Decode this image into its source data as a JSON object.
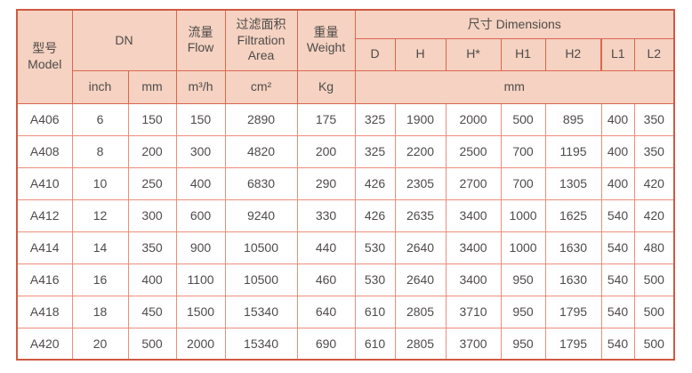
{
  "table": {
    "header": {
      "model": "型号\nModel",
      "dn": "DN",
      "flow": "流量\nFlow",
      "filtration_area": "过滤面积\nFiltration\nArea",
      "weight": "重量\nWeight",
      "dimensions": "尺寸 Dimensions",
      "dn_units": [
        "inch",
        "mm"
      ],
      "flow_unit": "m³/h",
      "area_unit": "cm²",
      "weight_unit": "Kg",
      "dim_cols": [
        "D",
        "H",
        "H*",
        "H1",
        "H2",
        "L1",
        "L2"
      ],
      "dim_unit": "mm"
    },
    "rows": [
      {
        "model": "A406",
        "values": [
          "6",
          "150",
          "150",
          "2890",
          "175",
          "325",
          "1900",
          "2000",
          "500",
          "895",
          "400",
          "350"
        ]
      },
      {
        "model": "A408",
        "values": [
          "8",
          "200",
          "300",
          "4820",
          "200",
          "325",
          "2200",
          "2500",
          "700",
          "1195",
          "400",
          "350"
        ]
      },
      {
        "model": "A410",
        "values": [
          "10",
          "250",
          "400",
          "6830",
          "290",
          "426",
          "2305",
          "2700",
          "700",
          "1305",
          "400",
          "420"
        ]
      },
      {
        "model": "A412",
        "values": [
          "12",
          "300",
          "600",
          "9240",
          "330",
          "426",
          "2635",
          "3400",
          "1000",
          "1625",
          "540",
          "420"
        ]
      },
      {
        "model": "A414",
        "values": [
          "14",
          "350",
          "900",
          "10500",
          "440",
          "530",
          "2640",
          "3400",
          "1000",
          "1630",
          "540",
          "480"
        ]
      },
      {
        "model": "A416",
        "values": [
          "16",
          "400",
          "1100",
          "10500",
          "460",
          "530",
          "2640",
          "3400",
          "950",
          "1630",
          "540",
          "500"
        ]
      },
      {
        "model": "A418",
        "values": [
          "18",
          "450",
          "1500",
          "15340",
          "640",
          "610",
          "2805",
          "3710",
          "950",
          "1795",
          "540",
          "500"
        ]
      },
      {
        "model": "A420",
        "values": [
          "20",
          "500",
          "2000",
          "15340",
          "690",
          "610",
          "2805",
          "3700",
          "950",
          "1795",
          "540",
          "500"
        ]
      }
    ]
  },
  "colors": {
    "header_bg": "#f5d2c1",
    "border_strong": "#d96750",
    "border_outer": "#cf5a41",
    "border_light": "#ee8d7b",
    "text": "#4f4b4a"
  }
}
